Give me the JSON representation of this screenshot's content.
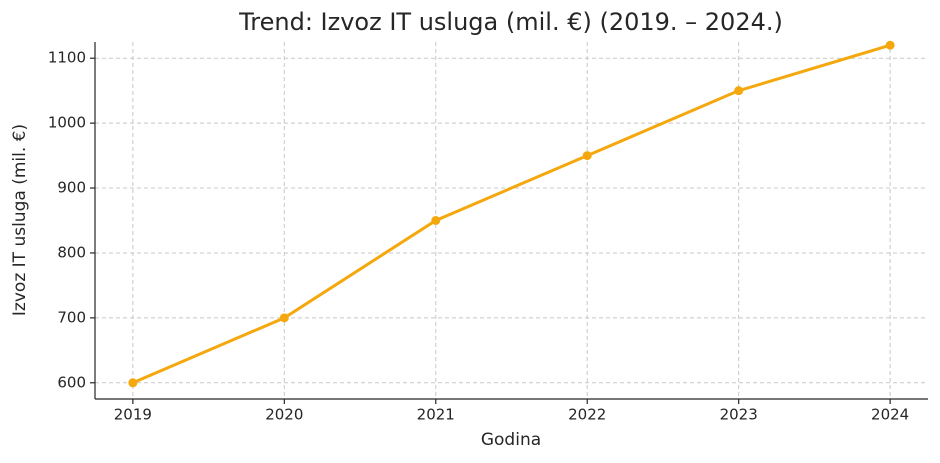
{
  "chart_data": {
    "type": "line",
    "title": "Trend: Izvoz IT usluga (mil. €) (2019. – 2024.)",
    "x_label": "Godina",
    "y_label": "Izvoz IT usluga (mil. €)",
    "x": [
      2019,
      2020,
      2021,
      2022,
      2023,
      2024
    ],
    "series": [
      {
        "name": "Izvoz IT usluga",
        "color": "#f5a80d",
        "values": [
          600,
          700,
          850,
          950,
          1050,
          1120
        ]
      }
    ],
    "xlim": [
      2018.75,
      2024.25
    ],
    "xticks": [
      2019,
      2020,
      2021,
      2022,
      2023,
      2024
    ],
    "ylim": [
      575,
      1125
    ],
    "yticks": [
      600,
      700,
      800,
      900,
      1000,
      1100
    ],
    "grid": true
  }
}
